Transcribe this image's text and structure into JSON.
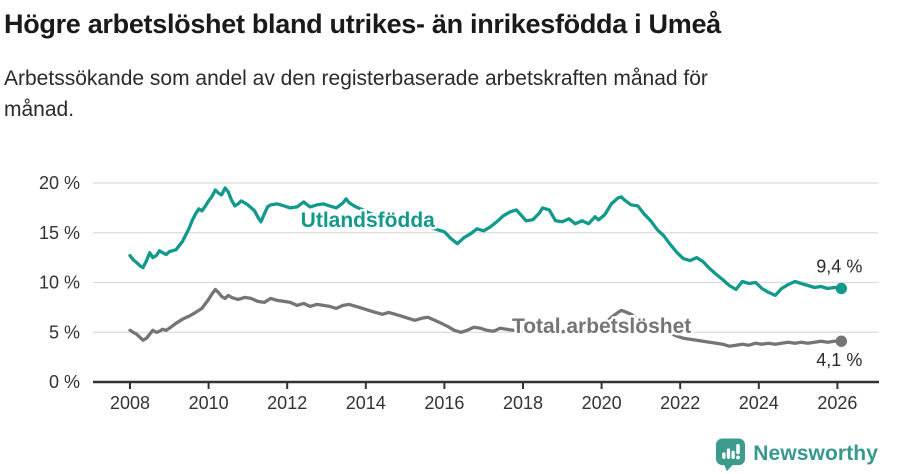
{
  "header": {
    "title": "Högre arbetslöshet bland utrikes- än inrikesfödda i Umeå",
    "subtitle_lines": [
      "Arbetssökande som andel av den registerbaserade arbetskraften månad för",
      "månad."
    ]
  },
  "footer": {
    "brand": "Newsworthy"
  },
  "colors": {
    "foreign_born": "#12998b",
    "total": "#757575",
    "grid": "#dcdcdc",
    "axis": "#333333",
    "tick_label": "#333333",
    "annotation": "#2b2b2b",
    "brand": "#3d9b8e"
  },
  "chart_data": {
    "type": "line",
    "title": "Högre arbetslöshet bland utrikes- än inrikesfödda i Umeå",
    "subtitle": "Arbetssökande som andel av den registerbaserade arbetskraften månad för månad.",
    "unit": "%",
    "grid": true,
    "x_axis": {
      "tick_labels": [
        "2008",
        "2010",
        "2012",
        "2014",
        "2016",
        "2018",
        "2020",
        "2022",
        "2024",
        "2026"
      ],
      "range": [
        2007.1,
        2027.1
      ]
    },
    "y_axis": {
      "tick_values": [
        0,
        5,
        10,
        15,
        20
      ],
      "tick_labels": [
        "0 %",
        "5 %",
        "10 %",
        "15 %",
        "20 %"
      ],
      "range": [
        0,
        21.3
      ]
    },
    "series": [
      {
        "name": "Utlandsfödda",
        "color": "#12998b",
        "last_value_label": "9,4 %",
        "value_label_position": "above",
        "label_anchor": {
          "x": 2014.05,
          "y": 16.3
        },
        "points": [
          [
            2008.0,
            12.7
          ],
          [
            2008.08,
            12.3
          ],
          [
            2008.17,
            12.0
          ],
          [
            2008.25,
            11.7
          ],
          [
            2008.33,
            11.5
          ],
          [
            2008.42,
            12.2
          ],
          [
            2008.5,
            13.0
          ],
          [
            2008.58,
            12.5
          ],
          [
            2008.67,
            12.7
          ],
          [
            2008.75,
            13.2
          ],
          [
            2008.83,
            13.0
          ],
          [
            2008.92,
            12.8
          ],
          [
            2009.0,
            13.1
          ],
          [
            2009.17,
            13.3
          ],
          [
            2009.33,
            14.1
          ],
          [
            2009.5,
            15.4
          ],
          [
            2009.58,
            16.2
          ],
          [
            2009.67,
            16.9
          ],
          [
            2009.75,
            17.4
          ],
          [
            2009.83,
            17.2
          ],
          [
            2009.92,
            17.7
          ],
          [
            2010.0,
            18.2
          ],
          [
            2010.08,
            18.6
          ],
          [
            2010.17,
            19.3
          ],
          [
            2010.25,
            19.0
          ],
          [
            2010.33,
            18.8
          ],
          [
            2010.42,
            19.5
          ],
          [
            2010.5,
            19.1
          ],
          [
            2010.58,
            18.3
          ],
          [
            2010.67,
            17.7
          ],
          [
            2010.75,
            17.9
          ],
          [
            2010.83,
            18.2
          ],
          [
            2010.92,
            18.0
          ],
          [
            2011.0,
            17.8
          ],
          [
            2011.17,
            17.2
          ],
          [
            2011.25,
            16.6
          ],
          [
            2011.33,
            16.1
          ],
          [
            2011.42,
            16.9
          ],
          [
            2011.5,
            17.6
          ],
          [
            2011.58,
            17.8
          ],
          [
            2011.75,
            17.9
          ],
          [
            2011.92,
            17.7
          ],
          [
            2012.08,
            17.5
          ],
          [
            2012.25,
            17.6
          ],
          [
            2012.42,
            18.1
          ],
          [
            2012.58,
            17.6
          ],
          [
            2012.75,
            17.8
          ],
          [
            2012.92,
            17.9
          ],
          [
            2013.08,
            17.7
          ],
          [
            2013.25,
            17.5
          ],
          [
            2013.42,
            18.0
          ],
          [
            2013.5,
            18.4
          ],
          [
            2013.58,
            18.0
          ],
          [
            2013.75,
            17.6
          ],
          [
            2013.92,
            17.3
          ],
          [
            2014.08,
            17.0
          ],
          [
            2014.33,
            16.6
          ],
          [
            2014.58,
            16.2
          ],
          [
            2014.83,
            15.9
          ],
          [
            2015.08,
            15.7
          ],
          [
            2015.33,
            15.5
          ],
          [
            2015.5,
            15.8
          ],
          [
            2015.75,
            15.4
          ],
          [
            2016.0,
            15.1
          ],
          [
            2016.17,
            14.4
          ],
          [
            2016.33,
            13.9
          ],
          [
            2016.5,
            14.5
          ],
          [
            2016.67,
            14.9
          ],
          [
            2016.83,
            15.4
          ],
          [
            2017.0,
            15.2
          ],
          [
            2017.17,
            15.6
          ],
          [
            2017.33,
            16.1
          ],
          [
            2017.5,
            16.7
          ],
          [
            2017.67,
            17.1
          ],
          [
            2017.83,
            17.3
          ],
          [
            2017.92,
            16.9
          ],
          [
            2018.08,
            16.2
          ],
          [
            2018.25,
            16.3
          ],
          [
            2018.42,
            17.0
          ],
          [
            2018.5,
            17.5
          ],
          [
            2018.67,
            17.3
          ],
          [
            2018.83,
            16.2
          ],
          [
            2019.0,
            16.1
          ],
          [
            2019.17,
            16.4
          ],
          [
            2019.33,
            15.9
          ],
          [
            2019.5,
            16.2
          ],
          [
            2019.67,
            15.9
          ],
          [
            2019.83,
            16.6
          ],
          [
            2019.92,
            16.3
          ],
          [
            2020.08,
            16.8
          ],
          [
            2020.25,
            17.9
          ],
          [
            2020.42,
            18.5
          ],
          [
            2020.5,
            18.6
          ],
          [
            2020.58,
            18.3
          ],
          [
            2020.75,
            17.8
          ],
          [
            2020.92,
            17.7
          ],
          [
            2021.08,
            16.9
          ],
          [
            2021.25,
            16.2
          ],
          [
            2021.42,
            15.3
          ],
          [
            2021.58,
            14.7
          ],
          [
            2021.75,
            13.8
          ],
          [
            2021.92,
            13.0
          ],
          [
            2022.08,
            12.4
          ],
          [
            2022.25,
            12.2
          ],
          [
            2022.42,
            12.5
          ],
          [
            2022.58,
            12.1
          ],
          [
            2022.75,
            11.4
          ],
          [
            2022.92,
            10.8
          ],
          [
            2023.08,
            10.3
          ],
          [
            2023.25,
            9.7
          ],
          [
            2023.42,
            9.3
          ],
          [
            2023.58,
            10.1
          ],
          [
            2023.75,
            9.9
          ],
          [
            2023.92,
            10.0
          ],
          [
            2024.08,
            9.4
          ],
          [
            2024.25,
            9.0
          ],
          [
            2024.42,
            8.7
          ],
          [
            2024.58,
            9.4
          ],
          [
            2024.75,
            9.8
          ],
          [
            2024.92,
            10.1
          ],
          [
            2025.08,
            9.9
          ],
          [
            2025.25,
            9.7
          ],
          [
            2025.42,
            9.5
          ],
          [
            2025.58,
            9.6
          ],
          [
            2025.75,
            9.4
          ],
          [
            2025.92,
            9.5
          ],
          [
            2026.1,
            9.4
          ]
        ]
      },
      {
        "name": "Total arbetslöshet",
        "color": "#757575",
        "last_value_label": "4,1 %",
        "value_label_position": "below",
        "label_anchor": {
          "x": 2020.0,
          "y": 5.65
        },
        "points": [
          [
            2008.0,
            5.2
          ],
          [
            2008.08,
            5.0
          ],
          [
            2008.17,
            4.8
          ],
          [
            2008.25,
            4.5
          ],
          [
            2008.33,
            4.2
          ],
          [
            2008.42,
            4.4
          ],
          [
            2008.5,
            4.8
          ],
          [
            2008.58,
            5.2
          ],
          [
            2008.67,
            5.0
          ],
          [
            2008.75,
            5.1
          ],
          [
            2008.83,
            5.3
          ],
          [
            2008.92,
            5.2
          ],
          [
            2009.0,
            5.4
          ],
          [
            2009.17,
            5.9
          ],
          [
            2009.33,
            6.3
          ],
          [
            2009.5,
            6.6
          ],
          [
            2009.67,
            7.0
          ],
          [
            2009.83,
            7.4
          ],
          [
            2010.0,
            8.3
          ],
          [
            2010.08,
            8.8
          ],
          [
            2010.17,
            9.3
          ],
          [
            2010.25,
            9.0
          ],
          [
            2010.33,
            8.6
          ],
          [
            2010.42,
            8.4
          ],
          [
            2010.5,
            8.7
          ],
          [
            2010.58,
            8.5
          ],
          [
            2010.75,
            8.3
          ],
          [
            2010.92,
            8.5
          ],
          [
            2011.08,
            8.4
          ],
          [
            2011.25,
            8.1
          ],
          [
            2011.42,
            8.0
          ],
          [
            2011.58,
            8.4
          ],
          [
            2011.75,
            8.2
          ],
          [
            2011.92,
            8.1
          ],
          [
            2012.08,
            8.0
          ],
          [
            2012.25,
            7.7
          ],
          [
            2012.42,
            7.9
          ],
          [
            2012.58,
            7.6
          ],
          [
            2012.75,
            7.8
          ],
          [
            2012.92,
            7.7
          ],
          [
            2013.08,
            7.6
          ],
          [
            2013.25,
            7.4
          ],
          [
            2013.42,
            7.7
          ],
          [
            2013.58,
            7.8
          ],
          [
            2013.75,
            7.6
          ],
          [
            2013.92,
            7.4
          ],
          [
            2014.08,
            7.2
          ],
          [
            2014.25,
            7.0
          ],
          [
            2014.42,
            6.8
          ],
          [
            2014.58,
            7.0
          ],
          [
            2014.75,
            6.8
          ],
          [
            2014.92,
            6.6
          ],
          [
            2015.08,
            6.4
          ],
          [
            2015.25,
            6.2
          ],
          [
            2015.42,
            6.4
          ],
          [
            2015.58,
            6.5
          ],
          [
            2015.75,
            6.2
          ],
          [
            2015.92,
            5.9
          ],
          [
            2016.08,
            5.6
          ],
          [
            2016.25,
            5.2
          ],
          [
            2016.42,
            5.0
          ],
          [
            2016.58,
            5.2
          ],
          [
            2016.75,
            5.5
          ],
          [
            2016.92,
            5.4
          ],
          [
            2017.08,
            5.2
          ],
          [
            2017.25,
            5.1
          ],
          [
            2017.42,
            5.4
          ],
          [
            2017.58,
            5.3
          ],
          [
            2017.75,
            5.2
          ],
          [
            2017.92,
            5.1
          ],
          [
            2018.08,
            5.2
          ],
          [
            2018.25,
            5.1
          ],
          [
            2018.42,
            5.3
          ],
          [
            2018.58,
            5.2
          ],
          [
            2018.75,
            5.1
          ],
          [
            2018.92,
            5.0
          ],
          [
            2019.08,
            5.1
          ],
          [
            2019.25,
            5.2
          ],
          [
            2019.42,
            5.1
          ],
          [
            2019.58,
            5.2
          ],
          [
            2019.75,
            5.3
          ],
          [
            2019.92,
            5.5
          ],
          [
            2020.08,
            5.8
          ],
          [
            2020.25,
            6.5
          ],
          [
            2020.42,
            7.0
          ],
          [
            2020.5,
            7.2
          ],
          [
            2020.58,
            7.1
          ],
          [
            2020.75,
            6.8
          ],
          [
            2020.92,
            6.3
          ],
          [
            2021.08,
            5.9
          ],
          [
            2021.25,
            5.6
          ],
          [
            2021.42,
            5.3
          ],
          [
            2021.58,
            5.1
          ],
          [
            2021.75,
            4.9
          ],
          [
            2021.92,
            4.6
          ],
          [
            2022.08,
            4.4
          ],
          [
            2022.25,
            4.3
          ],
          [
            2022.42,
            4.2
          ],
          [
            2022.58,
            4.1
          ],
          [
            2022.75,
            4.0
          ],
          [
            2022.92,
            3.9
          ],
          [
            2023.08,
            3.8
          ],
          [
            2023.25,
            3.6
          ],
          [
            2023.42,
            3.7
          ],
          [
            2023.58,
            3.8
          ],
          [
            2023.75,
            3.7
          ],
          [
            2023.92,
            3.9
          ],
          [
            2024.08,
            3.8
          ],
          [
            2024.25,
            3.9
          ],
          [
            2024.42,
            3.8
          ],
          [
            2024.58,
            3.9
          ],
          [
            2024.75,
            4.0
          ],
          [
            2024.92,
            3.9
          ],
          [
            2025.08,
            4.0
          ],
          [
            2025.25,
            3.9
          ],
          [
            2025.42,
            4.0
          ],
          [
            2025.58,
            4.1
          ],
          [
            2025.75,
            4.0
          ],
          [
            2025.92,
            4.1
          ],
          [
            2026.1,
            4.1
          ]
        ]
      }
    ]
  }
}
